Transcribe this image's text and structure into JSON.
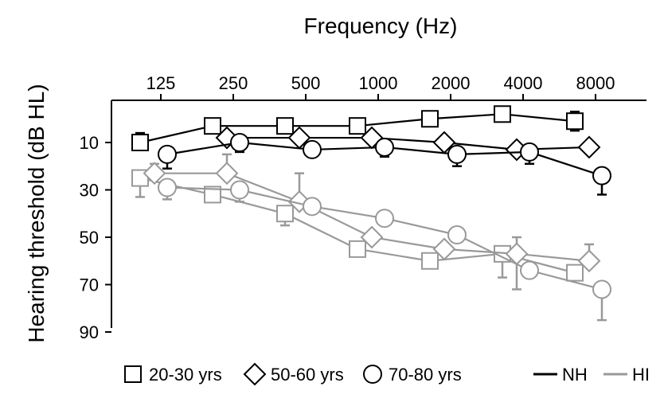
{
  "chart_data": {
    "type": "line",
    "xlabel": "Frequency (Hz)",
    "ylabel": "Hearing threshold (dB HL)",
    "x_position": "top",
    "y_inverted": true,
    "categories": [
      "125",
      "250",
      "500",
      "1000",
      "2000",
      "4000",
      "8000"
    ],
    "y_ticks": [
      "10",
      "30",
      "50",
      "70",
      "90"
    ],
    "ylim": [
      90,
      -5
    ],
    "legend": {
      "placement": "bottom",
      "markers": [
        {
          "shape": "square",
          "label": "20-30 yrs"
        },
        {
          "shape": "diamond",
          "label": "50-60 yrs"
        },
        {
          "shape": "circle",
          "label": "70-80 yrs"
        }
      ],
      "lines": [
        {
          "color": "#000000",
          "label": "NH"
        },
        {
          "color": "#999999",
          "label": "HI"
        }
      ]
    },
    "series": [
      {
        "group": "NH",
        "age": "20-30 yrs",
        "shape": "square",
        "color": "#000000",
        "values": [
          10,
          3,
          3,
          3,
          0,
          -2,
          1
        ],
        "err_up": [
          4,
          0,
          0,
          0,
          0,
          0,
          4
        ],
        "err_down": [
          0,
          0,
          0,
          0,
          0,
          0,
          4
        ]
      },
      {
        "group": "NH",
        "age": "50-60 yrs",
        "shape": "diamond",
        "color": "#000000",
        "values": [
          null,
          8,
          8,
          8,
          10,
          13,
          12
        ],
        "err_up": [
          0,
          0,
          0,
          0,
          0,
          0,
          0
        ],
        "err_down": [
          0,
          0,
          0,
          0,
          0,
          0,
          0
        ]
      },
      {
        "group": "NH",
        "age": "70-80 yrs",
        "shape": "circle",
        "color": "#000000",
        "values": [
          15,
          10,
          13,
          12,
          15,
          14,
          24
        ],
        "err_up": [
          0,
          0,
          0,
          0,
          0,
          0,
          0
        ],
        "err_down": [
          6,
          4,
          0,
          4,
          5,
          5,
          8
        ]
      },
      {
        "group": "HI",
        "age": "20-30 yrs",
        "shape": "square",
        "color": "#999999",
        "values": [
          25,
          32,
          40,
          55,
          60,
          57,
          65
        ],
        "err_up": [
          0,
          0,
          0,
          0,
          0,
          0,
          0
        ],
        "err_down": [
          8,
          3,
          5,
          3,
          0,
          10,
          3
        ]
      },
      {
        "group": "HI",
        "age": "50-60 yrs",
        "shape": "diamond",
        "color": "#999999",
        "values": [
          23,
          23,
          35,
          50,
          55,
          57,
          60
        ],
        "err_up": [
          4,
          8,
          12,
          0,
          0,
          7,
          7
        ],
        "err_down": [
          0,
          0,
          0,
          0,
          0,
          15,
          0
        ]
      },
      {
        "group": "HI",
        "age": "70-80 yrs",
        "shape": "circle",
        "color": "#999999",
        "values": [
          29,
          30,
          37,
          42,
          49,
          64,
          72
        ],
        "err_up": [
          0,
          0,
          0,
          0,
          0,
          0,
          0
        ],
        "err_down": [
          5,
          5,
          0,
          0,
          0,
          0,
          13
        ]
      }
    ]
  }
}
